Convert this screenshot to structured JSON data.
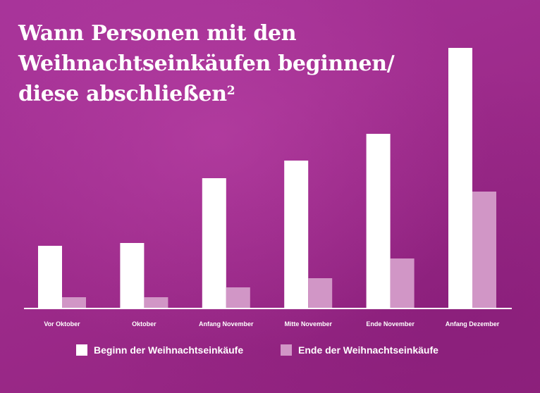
{
  "colors": {
    "background": "#9e2b8c",
    "series_begin": "#ffffff",
    "series_end": "#d196c6",
    "text": "#ffffff"
  },
  "chart": {
    "title": "Wann Personen mit den Weihnachtseinkäufen beginnen/ diese abschließen",
    "title_lines": [
      "Wann Personen mit den",
      "Weihnachtseinkäufen beginnen/",
      "diese abschließen"
    ],
    "title_footnote": "2"
  },
  "legend": {
    "begin_label": "Beginn der Weihnachtseinkäufe",
    "end_label": "Ende der Weihnachtseinkäufe"
  },
  "chart_data": {
    "type": "bar",
    "title": "Wann Personen mit den Weihnachtseinkäufen beginnen/ diese abschließen",
    "xlabel": "",
    "ylabel": "",
    "grid": false,
    "legend_position": "bottom",
    "categories": [
      "Vor Oktober",
      "Oktober",
      "Anfang November",
      "Mitte November",
      "Ende November",
      "Anfang Dezember"
    ],
    "series": [
      {
        "name": "Beginn der Weihnachtseinkäufe",
        "color": "#ffffff",
        "values": [
          89,
          93,
          185,
          210,
          248,
          370
        ]
      },
      {
        "name": "Ende der Weihnachtseinkäufe",
        "color": "#d196c6",
        "values": [
          16,
          16,
          30,
          43,
          71,
          166
        ]
      }
    ],
    "ylim": [
      0,
      370
    ]
  }
}
